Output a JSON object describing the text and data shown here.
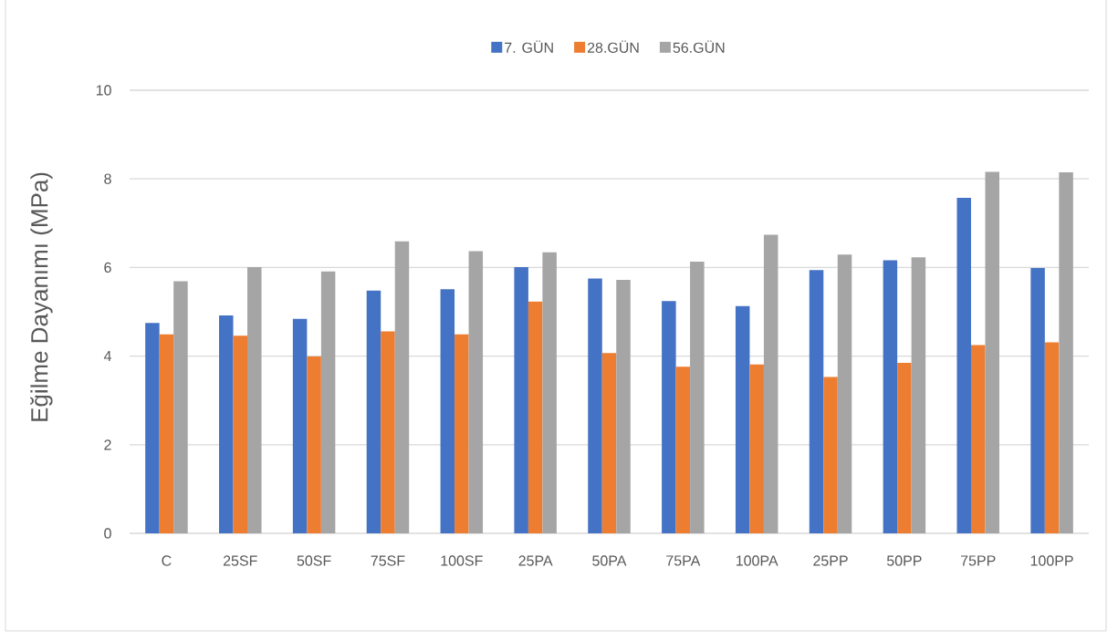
{
  "chart_data": {
    "type": "bar",
    "ylabel": "Eğilme Dayanımı (MPa)",
    "categories": [
      "C",
      "25SF",
      "50SF",
      "75SF",
      "100SF",
      "25PA",
      "50PA",
      "75PA",
      "100PA",
      "25PP",
      "50PP",
      "75PP",
      "100PP"
    ],
    "series": [
      {
        "name": "7. GÜN",
        "color": "#4472C4",
        "values": [
          4.75,
          4.92,
          4.84,
          5.48,
          5.51,
          6.01,
          5.75,
          5.24,
          5.13,
          5.94,
          6.16,
          7.57,
          5.99
        ]
      },
      {
        "name": "28.GÜN",
        "color": "#ED7D31",
        "values": [
          4.49,
          4.46,
          3.99,
          4.56,
          4.49,
          5.23,
          4.07,
          3.76,
          3.81,
          3.53,
          3.85,
          4.25,
          4.31
        ]
      },
      {
        "name": "56.GÜN",
        "color": "#A5A5A5",
        "values": [
          5.69,
          6.01,
          5.91,
          6.59,
          6.37,
          6.34,
          5.72,
          6.13,
          6.74,
          6.29,
          6.23,
          8.16,
          8.15
        ]
      }
    ],
    "ylim": [
      0,
      10
    ],
    "yticks": [
      0,
      2,
      4,
      6,
      8,
      10
    ],
    "grid": "y",
    "legend": "top"
  }
}
